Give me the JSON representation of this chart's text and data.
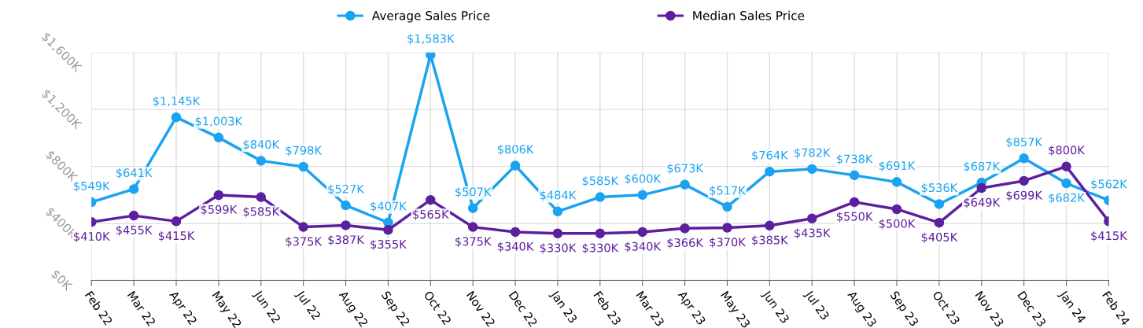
{
  "chart_data": {
    "type": "line",
    "categories": [
      "Feb 22",
      "Mar 22",
      "Apr 22",
      "May 22",
      "Jun 22",
      "Jul 22",
      "Aug 22",
      "Sep 22",
      "Oct 22",
      "Nov 22",
      "Dec 22",
      "Jan 23",
      "Feb 23",
      "Mar 23",
      "Apr 23",
      "May 23",
      "Jun 23",
      "Jul 23",
      "Aug 23",
      "Sep 23",
      "Oct 23",
      "Nov 23",
      "Dec 23",
      "Jan 24",
      "Feb 24"
    ],
    "series": [
      {
        "name": "Average Sales Price",
        "color": "#1aa3f0",
        "values": [
          549,
          641,
          1145,
          1003,
          840,
          798,
          527,
          407,
          1583,
          507,
          806,
          484,
          585,
          600,
          673,
          517,
          764,
          782,
          738,
          691,
          536,
          687,
          857,
          682,
          562
        ],
        "value_labels": [
          "$549K",
          "$641K",
          "$1,145K",
          "$1,003K",
          "$840K",
          "$798K",
          "$527K",
          "$407K",
          "$1,583K",
          "$507K",
          "$806K",
          "$484K",
          "$585K",
          "$600K",
          "$673K",
          "$517K",
          "$764K",
          "$782K",
          "$738K",
          "$691K",
          "$536K",
          "$687K",
          "$857K",
          "$682K",
          "$562K"
        ]
      },
      {
        "name": "Median Sales Price",
        "color": "#5c1f9e",
        "values": [
          410,
          455,
          415,
          599,
          585,
          375,
          387,
          355,
          565,
          375,
          340,
          330,
          330,
          340,
          366,
          370,
          385,
          435,
          550,
          500,
          405,
          649,
          699,
          800,
          415
        ],
        "value_labels": [
          "$410K",
          "$455K",
          "$415K",
          "$599K",
          "$585K",
          "$375K",
          "$387K",
          "$355K",
          "$565K",
          "$375K",
          "$340K",
          "$330K",
          "$330K",
          "$340K",
          "$366K",
          "$370K",
          "$385K",
          "$435K",
          "$550K",
          "$500K",
          "$405K",
          "$649K",
          "$699K",
          "$800K",
          "$415K"
        ]
      }
    ],
    "ylim": [
      0,
      1600
    ],
    "yticks": [
      {
        "value": 0,
        "label": "$0K"
      },
      {
        "value": 400,
        "label": "$400K"
      },
      {
        "value": 800,
        "label": "$800K"
      },
      {
        "value": 1200,
        "label": "$1,200K"
      },
      {
        "value": 1600,
        "label": "$1,600K"
      }
    ],
    "grid": true,
    "legend": "top",
    "marker": "circle",
    "line_style": "solid"
  }
}
